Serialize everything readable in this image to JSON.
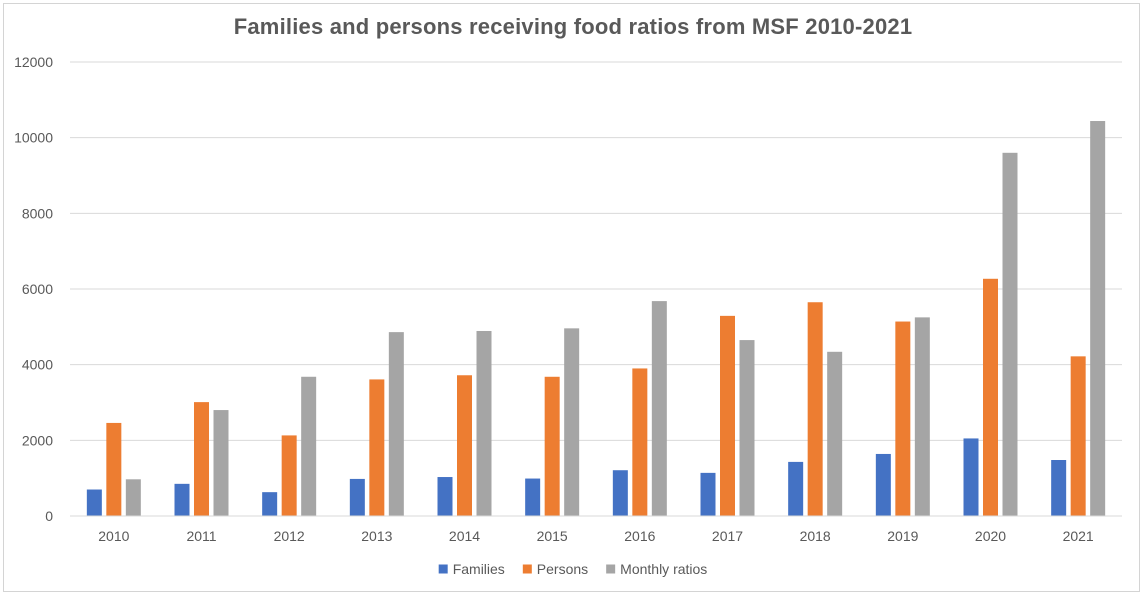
{
  "chart_data": {
    "type": "bar",
    "title": "Families and persons receiving food ratios from MSF 2010-2021",
    "xlabel": "",
    "ylabel": "",
    "ylim": [
      0,
      12000
    ],
    "yticks": [
      0,
      2000,
      4000,
      6000,
      8000,
      10000,
      12000
    ],
    "grid": true,
    "legend_position": "bottom",
    "categories": [
      "2010",
      "2011",
      "2012",
      "2013",
      "2014",
      "2015",
      "2016",
      "2017",
      "2018",
      "2019",
      "2020",
      "2021"
    ],
    "series": [
      {
        "name": "Families",
        "color": "#4472c4",
        "values": [
          700,
          850,
          630,
          980,
          1030,
          990,
          1210,
          1140,
          1430,
          1640,
          2050,
          1480
        ]
      },
      {
        "name": "Persons",
        "color": "#ed7d31",
        "values": [
          2460,
          3010,
          2130,
          3610,
          3720,
          3680,
          3900,
          5290,
          5650,
          5140,
          6270,
          4220
        ]
      },
      {
        "name": "Monthly ratios",
        "color": "#a5a5a5",
        "values": [
          970,
          2800,
          3680,
          4860,
          4890,
          4960,
          5680,
          4650,
          4340,
          5250,
          9600,
          10440
        ]
      }
    ]
  }
}
